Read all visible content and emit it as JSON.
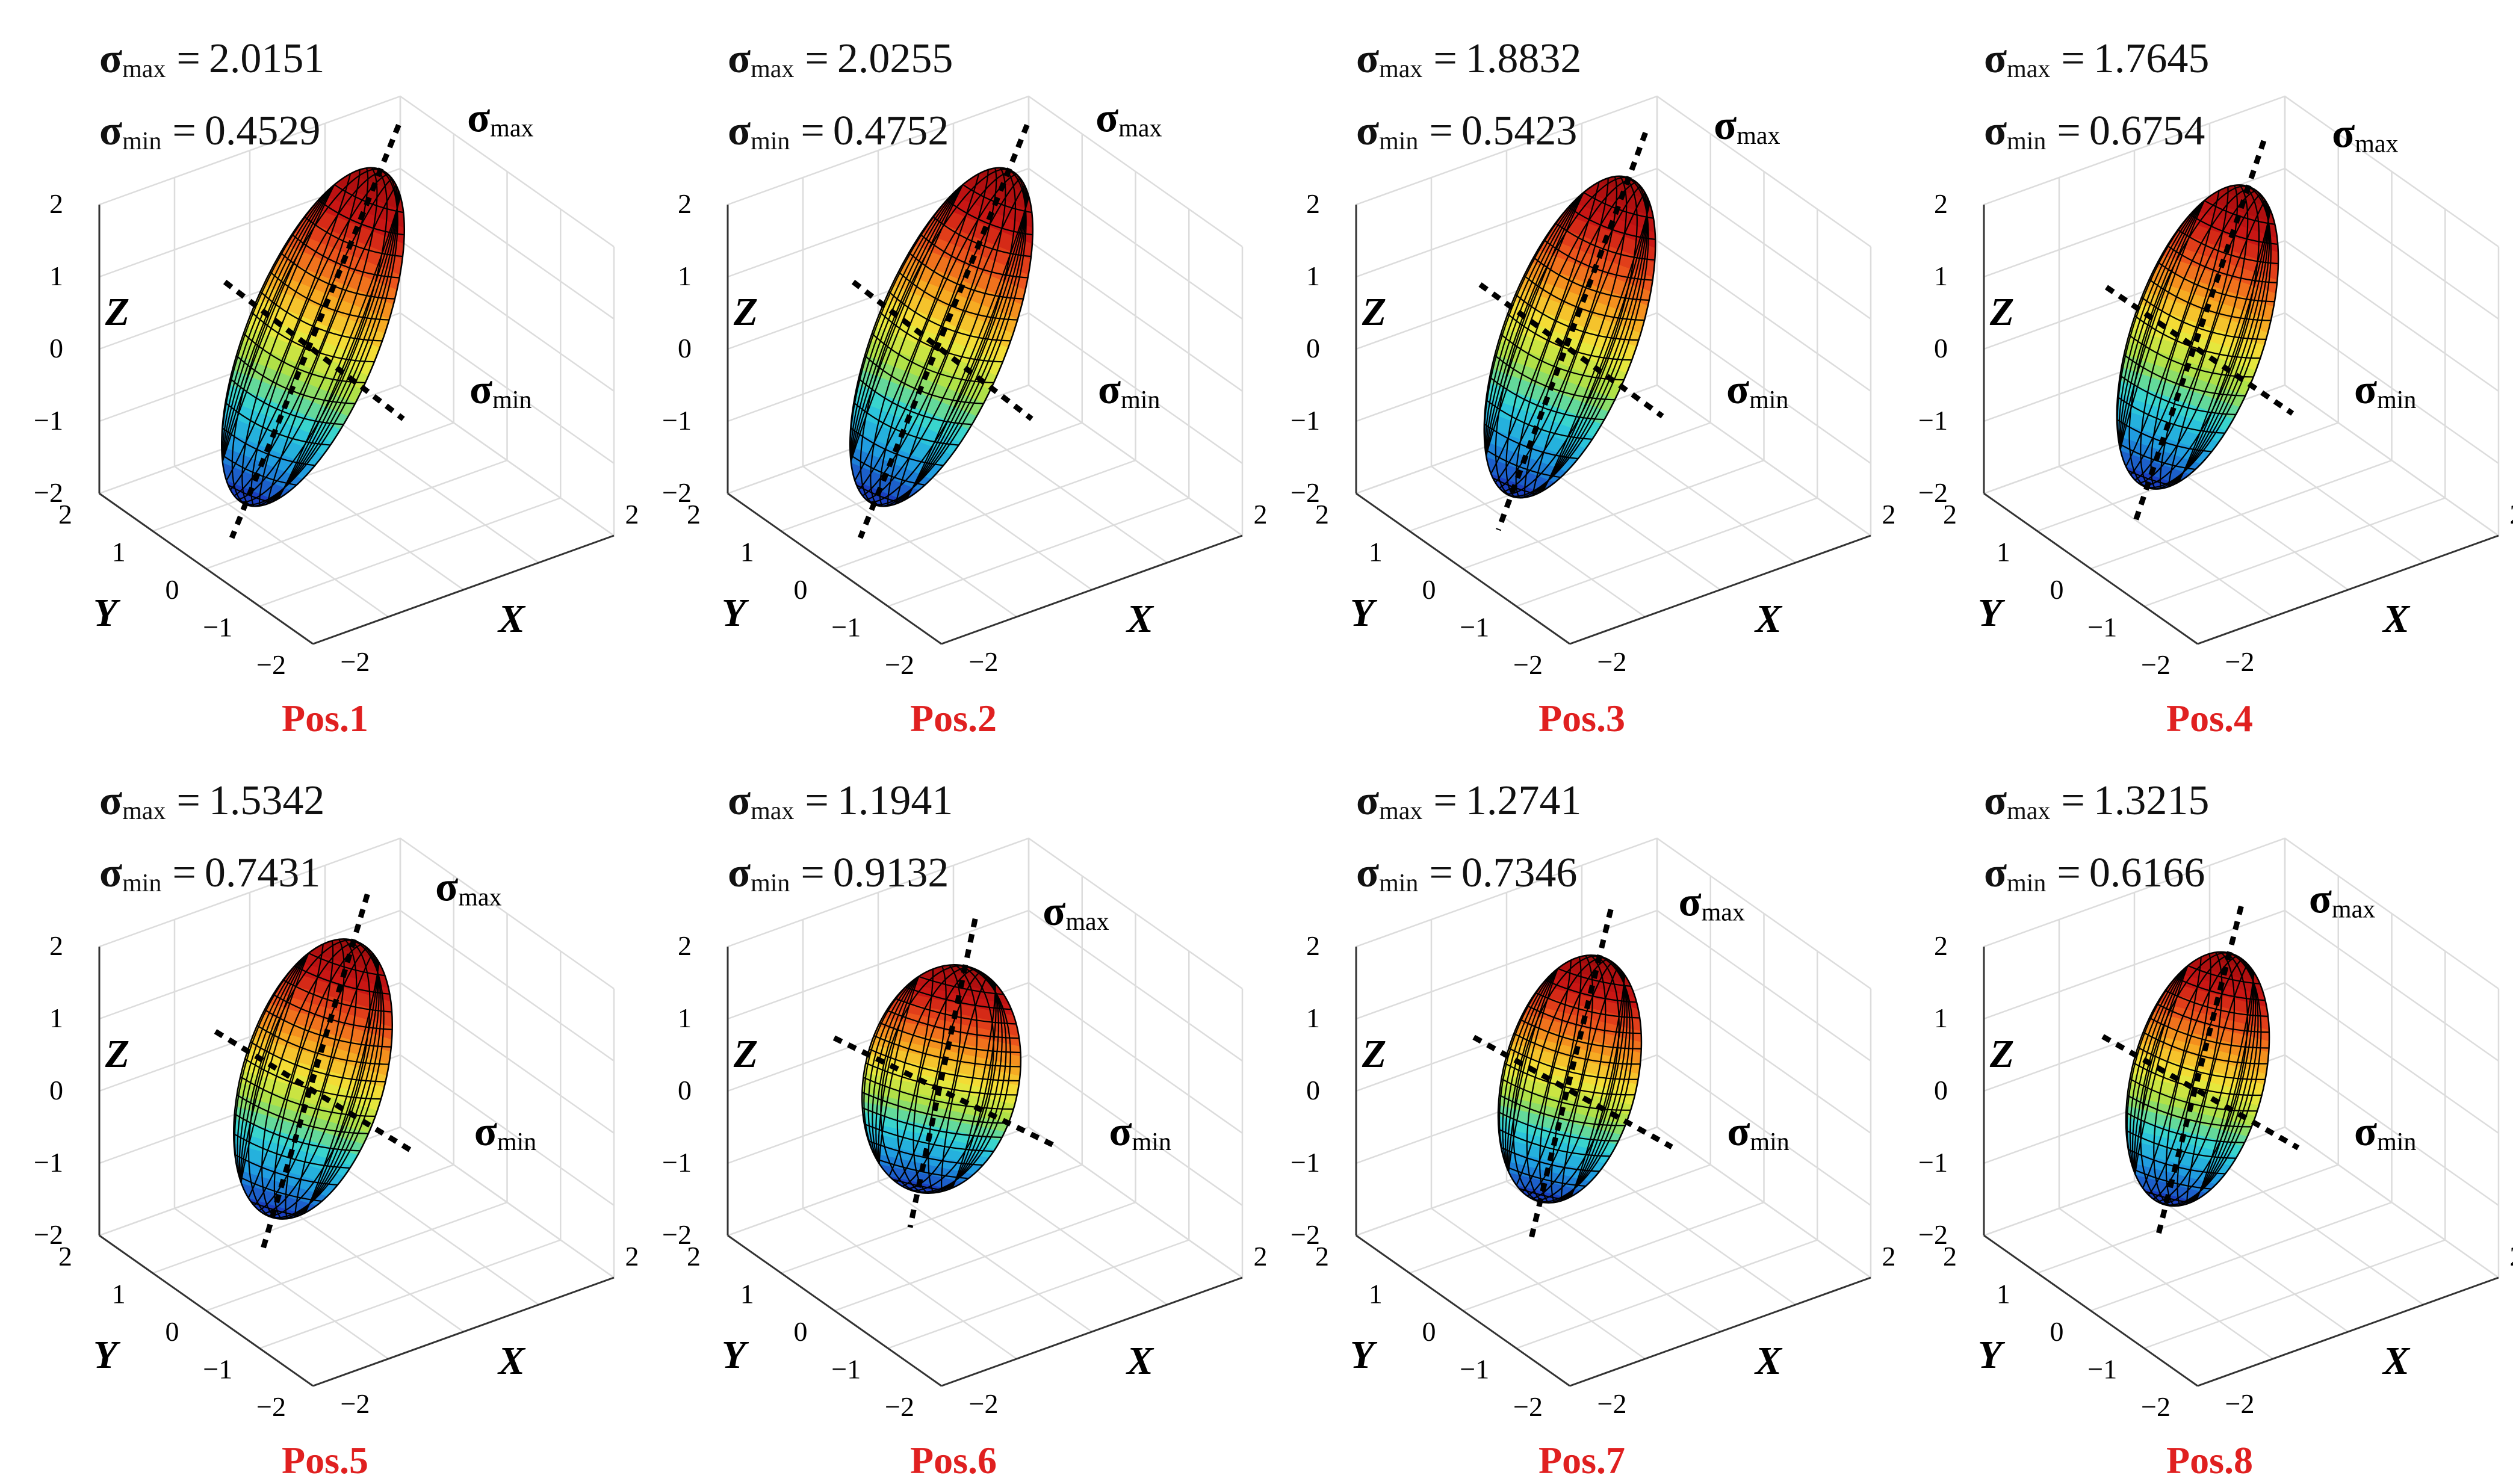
{
  "figure": {
    "pos_label_color": "#e02020",
    "colormap": [
      "#1a3fbf",
      "#1f9be0",
      "#2fd3d9",
      "#a6e04a",
      "#f2e83a",
      "#f7a21f",
      "#ea4d1c",
      "#c71414",
      "#a30d0d"
    ]
  },
  "common": {
    "sigma": "σ",
    "max_sub": "max",
    "min_sub": "min",
    "equals": "=",
    "axis_x": "X",
    "axis_y": "Y",
    "axis_z": "Z",
    "z_ticks": [
      "2",
      "1",
      "0",
      "−1",
      "−2"
    ],
    "y_ticks": [
      "2",
      "1",
      "0",
      "−1",
      "−2"
    ],
    "x_ticks": [
      "−2",
      "2"
    ]
  },
  "panels": [
    {
      "label": "Pos.1",
      "sigma_max": "2.0151",
      "sigma_min": "0.4529",
      "major": 1.0,
      "minor": 0.34
    },
    {
      "label": "Pos.2",
      "sigma_max": "2.0255",
      "sigma_min": "0.4752",
      "major": 1.0,
      "minor": 0.36
    },
    {
      "label": "Pos.3",
      "sigma_max": "1.8832",
      "sigma_min": "0.5423",
      "major": 0.94,
      "minor": 0.42
    },
    {
      "label": "Pos.4",
      "sigma_max": "1.7645",
      "sigma_min": "0.6754",
      "major": 0.88,
      "minor": 0.5
    },
    {
      "label": "Pos.5",
      "sigma_max": "1.5342",
      "sigma_min": "0.7431",
      "major": 0.8,
      "minor": 0.55
    },
    {
      "label": "Pos.6",
      "sigma_max": "1.1941",
      "sigma_min": "0.9132",
      "major": 0.64,
      "minor": 0.6
    },
    {
      "label": "Pos.7",
      "sigma_max": "1.2741",
      "sigma_min": "0.7346",
      "major": 0.7,
      "minor": 0.52
    },
    {
      "label": "Pos.8",
      "sigma_max": "1.3215",
      "sigma_min": "0.6166",
      "major": 0.72,
      "minor": 0.47
    }
  ]
}
